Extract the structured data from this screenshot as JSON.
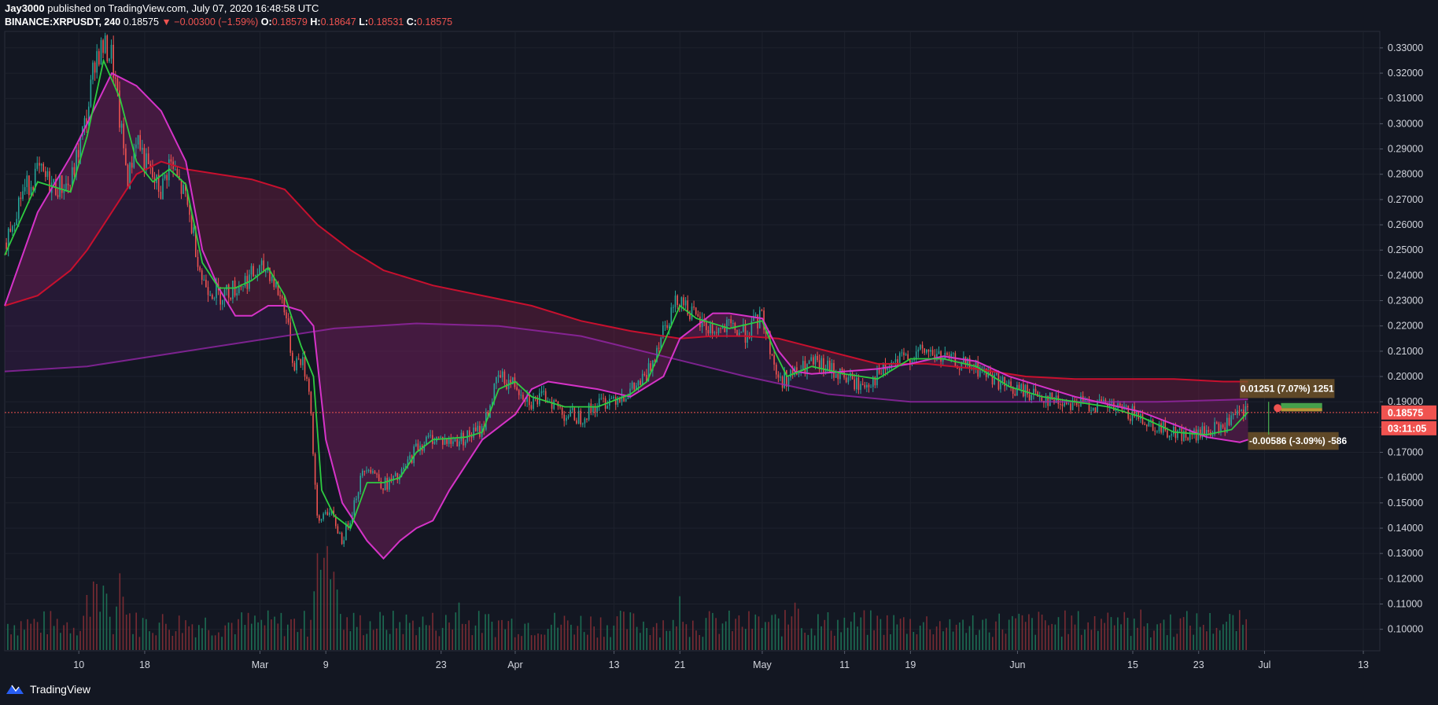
{
  "header": {
    "author": "Jay3000",
    "published_text": "published on TradingView.com, July 07, 2020 16:48:58 UTC"
  },
  "ohlc": {
    "symbol": "BINANCE:XRPUSDT, 240",
    "last": "0.18575",
    "arrow": "▼",
    "change": "−0.00300 (−1.59%)",
    "o_label": "O:",
    "o": "0.18579",
    "h_label": "H:",
    "h": "0.18647",
    "l_label": "L:",
    "l": "0.18531",
    "c_label": "C:",
    "c": "0.18575"
  },
  "footer": {
    "brand": "TradingView"
  },
  "colors": {
    "background": "#131722",
    "up": "#26a69a",
    "down": "#ef5350",
    "ema_fast": "#2ecc40",
    "ema_mid": "#d633c8",
    "ema_slow": "#c8102e",
    "ema_long": "#9c27b0",
    "price_tag": "#f05350"
  },
  "chart_data": {
    "type": "candlestick",
    "symbol": "XRPUSDT",
    "exchange": "BINANCE",
    "interval": "240",
    "ylim": [
      0.0915,
      0.3365
    ],
    "y_ticks": [
      0.1,
      0.11,
      0.12,
      0.13,
      0.14,
      0.15,
      0.16,
      0.17,
      0.18,
      0.19,
      0.2,
      0.21,
      0.22,
      0.23,
      0.24,
      0.25,
      0.26,
      0.27,
      0.28,
      0.29,
      0.3,
      0.31,
      0.32,
      0.33
    ],
    "y_tick_labels": [
      "0.10000",
      "0.11000",
      "0.12000",
      "0.13000",
      "0.14000",
      "0.15000",
      "0.16000",
      "0.17000",
      "0.18000",
      "0.19000",
      "0.20000",
      "0.21000",
      "0.22000",
      "0.23000",
      "0.24000",
      "0.25000",
      "0.26000",
      "0.27000",
      "0.28000",
      "0.29000",
      "0.30000",
      "0.31000",
      "0.32000",
      "0.33000"
    ],
    "x_ticks": [
      {
        "label": "10",
        "day": 9
      },
      {
        "label": "18",
        "day": 17
      },
      {
        "label": "Mar",
        "day": 31
      },
      {
        "label": "9",
        "day": 39
      },
      {
        "label": "23",
        "day": 53
      },
      {
        "label": "Apr",
        "day": 62
      },
      {
        "label": "13",
        "day": 74
      },
      {
        "label": "21",
        "day": 82
      },
      {
        "label": "May",
        "day": 92
      },
      {
        "label": "11",
        "day": 102
      },
      {
        "label": "19",
        "day": 110
      },
      {
        "label": "Jun",
        "day": 123
      },
      {
        "label": "15",
        "day": 137
      },
      {
        "label": "23",
        "day": 145
      },
      {
        "label": "Jul",
        "day": 153
      },
      {
        "label": "13",
        "day": 165
      }
    ],
    "x_range_days": [
      0,
      167
    ],
    "close_path": [
      [
        0.0,
        0.253
      ],
      [
        2.0,
        0.272
      ],
      [
        4.0,
        0.281
      ],
      [
        6.0,
        0.275
      ],
      [
        8.0,
        0.276
      ],
      [
        9.0,
        0.29
      ],
      [
        10.0,
        0.303
      ],
      [
        11.0,
        0.327
      ],
      [
        12.0,
        0.33
      ],
      [
        13.0,
        0.327
      ],
      [
        14.0,
        0.3
      ],
      [
        15.0,
        0.277
      ],
      [
        16.0,
        0.296
      ],
      [
        17.0,
        0.285
      ],
      [
        18.0,
        0.278
      ],
      [
        19.0,
        0.273
      ],
      [
        20.0,
        0.285
      ],
      [
        22.0,
        0.27
      ],
      [
        23.0,
        0.255
      ],
      [
        24.0,
        0.238
      ],
      [
        26.0,
        0.232
      ],
      [
        28.0,
        0.235
      ],
      [
        30.0,
        0.24
      ],
      [
        32.0,
        0.243
      ],
      [
        33.0,
        0.235
      ],
      [
        34.0,
        0.228
      ],
      [
        35.0,
        0.205
      ],
      [
        36.0,
        0.207
      ],
      [
        37.0,
        0.196
      ],
      [
        38.0,
        0.14
      ],
      [
        39.0,
        0.148
      ],
      [
        40.0,
        0.143
      ],
      [
        41.0,
        0.135
      ],
      [
        42.0,
        0.145
      ],
      [
        43.0,
        0.157
      ],
      [
        44.0,
        0.166
      ],
      [
        46.0,
        0.157
      ],
      [
        48.0,
        0.16
      ],
      [
        50.0,
        0.172
      ],
      [
        52.0,
        0.176
      ],
      [
        54.0,
        0.174
      ],
      [
        56.0,
        0.176
      ],
      [
        58.0,
        0.179
      ],
      [
        60.0,
        0.2
      ],
      [
        61.0,
        0.198
      ],
      [
        62.0,
        0.197
      ],
      [
        64.0,
        0.19
      ],
      [
        66.0,
        0.192
      ],
      [
        68.0,
        0.185
      ],
      [
        70.0,
        0.184
      ],
      [
        72.0,
        0.189
      ],
      [
        74.0,
        0.192
      ],
      [
        76.0,
        0.194
      ],
      [
        78.0,
        0.2
      ],
      [
        80.0,
        0.22
      ],
      [
        82.0,
        0.232
      ],
      [
        84.0,
        0.222
      ],
      [
        86.0,
        0.218
      ],
      [
        88.0,
        0.219
      ],
      [
        90.0,
        0.217
      ],
      [
        92.0,
        0.224
      ],
      [
        94.0,
        0.198
      ],
      [
        96.0,
        0.201
      ],
      [
        98.0,
        0.205
      ],
      [
        100.0,
        0.203
      ],
      [
        102.0,
        0.2
      ],
      [
        104.0,
        0.196
      ],
      [
        106.0,
        0.2
      ],
      [
        108.0,
        0.205
      ],
      [
        110.0,
        0.208
      ],
      [
        112.0,
        0.21
      ],
      [
        114.0,
        0.207
      ],
      [
        116.0,
        0.205
      ],
      [
        118.0,
        0.203
      ],
      [
        120.0,
        0.2
      ],
      [
        122.0,
        0.195
      ],
      [
        124.0,
        0.194
      ],
      [
        126.0,
        0.192
      ],
      [
        128.0,
        0.19
      ],
      [
        130.0,
        0.19
      ],
      [
        132.0,
        0.189
      ],
      [
        134.0,
        0.188
      ],
      [
        136.0,
        0.186
      ],
      [
        138.0,
        0.184
      ],
      [
        140.0,
        0.18
      ],
      [
        142.0,
        0.178
      ],
      [
        144.0,
        0.176
      ],
      [
        146.0,
        0.178
      ],
      [
        148.0,
        0.18
      ],
      [
        150.0,
        0.185
      ],
      [
        151.0,
        0.186
      ]
    ],
    "ema_fast": [
      [
        0.0,
        0.248
      ],
      [
        4.0,
        0.277
      ],
      [
        8.0,
        0.273
      ],
      [
        10.0,
        0.295
      ],
      [
        12.0,
        0.325
      ],
      [
        14.0,
        0.31
      ],
      [
        16.0,
        0.285
      ],
      [
        18.0,
        0.277
      ],
      [
        20.0,
        0.282
      ],
      [
        22.0,
        0.276
      ],
      [
        24.0,
        0.245
      ],
      [
        26.0,
        0.235
      ],
      [
        28.0,
        0.235
      ],
      [
        30.0,
        0.238
      ],
      [
        32.0,
        0.243
      ],
      [
        34.0,
        0.232
      ],
      [
        36.0,
        0.212
      ],
      [
        37.5,
        0.2
      ],
      [
        38.5,
        0.155
      ],
      [
        40.0,
        0.145
      ],
      [
        42.0,
        0.14
      ],
      [
        44.0,
        0.158
      ],
      [
        46.0,
        0.158
      ],
      [
        48.0,
        0.16
      ],
      [
        50.0,
        0.17
      ],
      [
        52.0,
        0.175
      ],
      [
        56.0,
        0.176
      ],
      [
        58.0,
        0.178
      ],
      [
        60.0,
        0.195
      ],
      [
        62.0,
        0.198
      ],
      [
        64.0,
        0.192
      ],
      [
        68.0,
        0.188
      ],
      [
        72.0,
        0.188
      ],
      [
        76.0,
        0.193
      ],
      [
        78.0,
        0.198
      ],
      [
        80.0,
        0.213
      ],
      [
        82.0,
        0.228
      ],
      [
        84.0,
        0.223
      ],
      [
        88.0,
        0.219
      ],
      [
        92.0,
        0.222
      ],
      [
        93.5,
        0.21
      ],
      [
        95.0,
        0.2
      ],
      [
        98.0,
        0.204
      ],
      [
        102.0,
        0.201
      ],
      [
        106.0,
        0.199
      ],
      [
        110.0,
        0.207
      ],
      [
        114.0,
        0.207
      ],
      [
        118.0,
        0.204
      ],
      [
        122.0,
        0.196
      ],
      [
        126.0,
        0.192
      ],
      [
        130.0,
        0.19
      ],
      [
        134.0,
        0.188
      ],
      [
        138.0,
        0.184
      ],
      [
        142.0,
        0.178
      ],
      [
        146.0,
        0.177
      ],
      [
        149.0,
        0.179
      ],
      [
        151.0,
        0.186
      ]
    ],
    "ema_mid": [
      [
        0.0,
        0.228
      ],
      [
        4.0,
        0.265
      ],
      [
        8.0,
        0.287
      ],
      [
        10.0,
        0.3
      ],
      [
        13.0,
        0.32
      ],
      [
        16.0,
        0.315
      ],
      [
        19.0,
        0.305
      ],
      [
        22.0,
        0.285
      ],
      [
        24.0,
        0.25
      ],
      [
        26.0,
        0.235
      ],
      [
        28.0,
        0.224
      ],
      [
        30.0,
        0.224
      ],
      [
        32.0,
        0.228
      ],
      [
        34.0,
        0.228
      ],
      [
        36.0,
        0.226
      ],
      [
        37.5,
        0.22
      ],
      [
        39.0,
        0.175
      ],
      [
        41.0,
        0.15
      ],
      [
        44.0,
        0.135
      ],
      [
        46.0,
        0.128
      ],
      [
        48.0,
        0.135
      ],
      [
        50.0,
        0.14
      ],
      [
        52.0,
        0.143
      ],
      [
        54.0,
        0.155
      ],
      [
        56.0,
        0.165
      ],
      [
        58.0,
        0.175
      ],
      [
        60.0,
        0.18
      ],
      [
        62.0,
        0.185
      ],
      [
        64.0,
        0.195
      ],
      [
        66.0,
        0.198
      ],
      [
        68.0,
        0.197
      ],
      [
        72.0,
        0.195
      ],
      [
        76.0,
        0.192
      ],
      [
        80.0,
        0.2
      ],
      [
        82.0,
        0.215
      ],
      [
        84.0,
        0.22
      ],
      [
        86.0,
        0.225
      ],
      [
        88.0,
        0.225
      ],
      [
        92.0,
        0.223
      ],
      [
        94.0,
        0.21
      ],
      [
        96.0,
        0.202
      ],
      [
        98.0,
        0.201
      ],
      [
        102.0,
        0.202
      ],
      [
        106.0,
        0.203
      ],
      [
        110.0,
        0.205
      ],
      [
        114.0,
        0.208
      ],
      [
        118.0,
        0.206
      ],
      [
        122.0,
        0.2
      ],
      [
        126.0,
        0.196
      ],
      [
        130.0,
        0.192
      ],
      [
        134.0,
        0.189
      ],
      [
        138.0,
        0.186
      ],
      [
        142.0,
        0.181
      ],
      [
        146.0,
        0.176
      ],
      [
        150.0,
        0.174
      ],
      [
        151.0,
        0.175
      ]
    ],
    "ema_slow": [
      [
        0.0,
        0.228
      ],
      [
        4.0,
        0.232
      ],
      [
        8.0,
        0.242
      ],
      [
        10.0,
        0.25
      ],
      [
        13.0,
        0.265
      ],
      [
        16.0,
        0.28
      ],
      [
        19.0,
        0.285
      ],
      [
        22.0,
        0.282
      ],
      [
        26.0,
        0.28
      ],
      [
        30.0,
        0.278
      ],
      [
        34.0,
        0.274
      ],
      [
        38.0,
        0.26
      ],
      [
        42.0,
        0.25
      ],
      [
        46.0,
        0.242
      ],
      [
        52.0,
        0.236
      ],
      [
        58.0,
        0.232
      ],
      [
        64.0,
        0.228
      ],
      [
        70.0,
        0.222
      ],
      [
        76.0,
        0.218
      ],
      [
        82.0,
        0.215
      ],
      [
        86.0,
        0.216
      ],
      [
        90.0,
        0.216
      ],
      [
        94.0,
        0.215
      ],
      [
        100.0,
        0.21
      ],
      [
        106.0,
        0.205
      ],
      [
        112.0,
        0.205
      ],
      [
        118.0,
        0.203
      ],
      [
        124.0,
        0.2
      ],
      [
        130.0,
        0.199
      ],
      [
        136.0,
        0.199
      ],
      [
        142.0,
        0.199
      ],
      [
        148.0,
        0.198
      ],
      [
        151.0,
        0.198
      ]
    ],
    "ema_long": [
      [
        0.0,
        0.202
      ],
      [
        10.0,
        0.204
      ],
      [
        20.0,
        0.209
      ],
      [
        30.0,
        0.214
      ],
      [
        40.0,
        0.219
      ],
      [
        50.0,
        0.221
      ],
      [
        60.0,
        0.22
      ],
      [
        70.0,
        0.216
      ],
      [
        80.0,
        0.208
      ],
      [
        90.0,
        0.2
      ],
      [
        100.0,
        0.193
      ],
      [
        110.0,
        0.19
      ],
      [
        120.0,
        0.19
      ],
      [
        130.0,
        0.19
      ],
      [
        140.0,
        0.19
      ],
      [
        151.0,
        0.191
      ]
    ],
    "volume_max": 1.0,
    "volume_spikes": [
      [
        10.0,
        0.45
      ],
      [
        11.0,
        0.6
      ],
      [
        12.0,
        0.5
      ],
      [
        14.0,
        0.55
      ],
      [
        38.0,
        0.9
      ],
      [
        39.0,
        1.0
      ],
      [
        40.0,
        0.8
      ],
      [
        55.0,
        0.4
      ],
      [
        82.0,
        0.4
      ],
      [
        96.0,
        0.5
      ],
      [
        116.0,
        0.3
      ],
      [
        134.0,
        0.4
      ],
      [
        138.0,
        0.3
      ]
    ],
    "annotations": {
      "long_position": {
        "label": "0.01251 (7.07%) 1251",
        "price_top": 0.199,
        "price_bottom": 0.1915,
        "x_start_day": 150,
        "x_end_day": 161.5
      },
      "short_position": {
        "label": "-0.00586 (-3.09%) -586",
        "price_top": 0.178,
        "price_bottom": 0.171,
        "x_start_day": 151,
        "x_end_day": 162
      },
      "current_price_line": 0.18575
    },
    "last_price_label": "0.18575",
    "countdown_label": "03:11:05"
  }
}
